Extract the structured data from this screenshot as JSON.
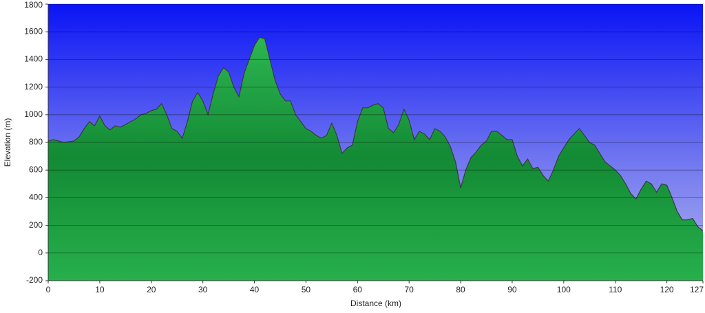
{
  "chart_data": {
    "type": "area",
    "x_label": "Distance (km)",
    "y_label": "Elevation (m)",
    "x": [
      0,
      1,
      2,
      3,
      4,
      5,
      6,
      7,
      8,
      9,
      10,
      11,
      12,
      13,
      14,
      15,
      16,
      17,
      18,
      19,
      20,
      21,
      22,
      23,
      24,
      25,
      26,
      27,
      28,
      29,
      30,
      31,
      32,
      33,
      34,
      35,
      36,
      37,
      38,
      39,
      40,
      41,
      42,
      43,
      44,
      45,
      46,
      47,
      48,
      49,
      50,
      51,
      52,
      53,
      54,
      55,
      56,
      57,
      58,
      59,
      60,
      61,
      62,
      63,
      64,
      65,
      66,
      67,
      68,
      69,
      70,
      71,
      72,
      73,
      74,
      75,
      76,
      77,
      78,
      79,
      80,
      81,
      82,
      83,
      84,
      85,
      86,
      87,
      88,
      89,
      90,
      91,
      92,
      93,
      94,
      95,
      96,
      97,
      98,
      99,
      100,
      101,
      102,
      103,
      104,
      105,
      106,
      107,
      108,
      109,
      110,
      111,
      112,
      113,
      114,
      115,
      116,
      117,
      118,
      119,
      120,
      121,
      122,
      123,
      124,
      125,
      126,
      127
    ],
    "values": [
      810,
      820,
      810,
      800,
      805,
      810,
      840,
      900,
      950,
      920,
      990,
      920,
      890,
      920,
      910,
      930,
      950,
      970,
      1000,
      1010,
      1030,
      1040,
      1080,
      1000,
      900,
      880,
      830,
      950,
      1100,
      1160,
      1100,
      1000,
      1150,
      1280,
      1340,
      1310,
      1200,
      1130,
      1300,
      1400,
      1500,
      1560,
      1550,
      1400,
      1250,
      1150,
      1100,
      1100,
      1000,
      950,
      900,
      880,
      850,
      830,
      850,
      940,
      850,
      720,
      760,
      780,
      950,
      1050,
      1050,
      1070,
      1080,
      1050,
      900,
      870,
      930,
      1040,
      960,
      820,
      880,
      860,
      820,
      900,
      880,
      840,
      770,
      660,
      470,
      600,
      690,
      730,
      780,
      810,
      880,
      880,
      850,
      820,
      820,
      700,
      630,
      680,
      610,
      620,
      560,
      520,
      600,
      700,
      760,
      820,
      860,
      900,
      850,
      800,
      780,
      720,
      660,
      630,
      600,
      560,
      500,
      430,
      390,
      460,
      520,
      500,
      440,
      500,
      490,
      400,
      300,
      240,
      240,
      250,
      190,
      160
    ],
    "color": "#22a846",
    "xlim": [
      0,
      127
    ],
    "ylim": [
      -200,
      1800
    ],
    "xticks": [
      0,
      10,
      20,
      30,
      40,
      50,
      60,
      70,
      80,
      90,
      100,
      110,
      120,
      127
    ],
    "yticks": [
      -200,
      0,
      200,
      400,
      600,
      800,
      1000,
      1200,
      1400,
      1600,
      1800
    ],
    "grid": true
  }
}
